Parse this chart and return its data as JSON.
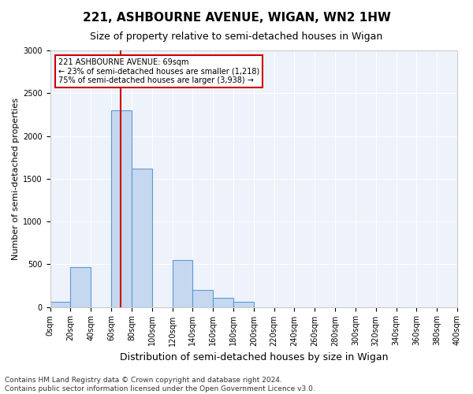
{
  "title1": "221, ASHBOURNE AVENUE, WIGAN, WN2 1HW",
  "title2": "Size of property relative to semi-detached houses in Wigan",
  "xlabel": "Distribution of semi-detached houses by size in Wigan",
  "ylabel": "Number of semi-detached properties",
  "footnote": "Contains HM Land Registry data © Crown copyright and database right 2024.\nContains public sector information licensed under the Open Government Licence v3.0.",
  "annotation_line1": "221 ASHBOURNE AVENUE: 69sqm",
  "annotation_line2": "← 23% of semi-detached houses are smaller (1,218)",
  "annotation_line3": "75% of semi-detached houses are larger (3,938) →",
  "bin_edges": [
    0,
    20,
    40,
    60,
    80,
    100,
    120,
    140,
    160,
    180,
    200,
    220,
    240,
    260,
    280,
    300,
    320,
    340,
    360,
    380,
    400
  ],
  "bar_values": [
    60,
    470,
    0,
    2300,
    1615,
    0,
    545,
    200,
    105,
    60,
    0,
    0,
    0,
    0,
    0,
    0,
    0,
    0,
    0,
    0
  ],
  "bar_color": "#c5d8f0",
  "bar_edge_color": "#5b9bd5",
  "vline_color": "#cc0000",
  "vline_x": 69,
  "ylim_max": 3000,
  "yticks": [
    0,
    500,
    1000,
    1500,
    2000,
    2500,
    3000
  ],
  "background_color": "#eef2fa",
  "annotation_box_facecolor": "#ffffff",
  "annotation_box_edgecolor": "#cc0000",
  "title1_fontsize": 11,
  "title2_fontsize": 9,
  "xlabel_fontsize": 9,
  "ylabel_fontsize": 8,
  "tick_fontsize": 7,
  "annotation_fontsize": 7,
  "footnote_fontsize": 6.5
}
